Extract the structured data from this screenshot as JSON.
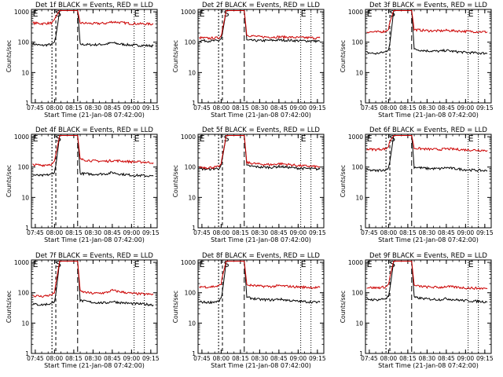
{
  "chart_data": [
    {
      "type": "line",
      "title": "Det 1f BLACK = Events, RED = LLD",
      "xlabel": "Start Time (21-Jan-08 07:42:00)",
      "ylabel": "Counts/sec",
      "xticks": [
        "07:45",
        "08:00",
        "08:15",
        "08:30",
        "08:45",
        "09:00",
        "09:15"
      ],
      "yticks": [
        "1",
        "10",
        "100",
        "1000"
      ],
      "ylim": [
        1,
        1200
      ],
      "scale": "log",
      "markers": [
        {
          "text": "E",
          "time": "07:43"
        },
        {
          "text": "S",
          "time": "08:01"
        },
        {
          "text": "E",
          "time": "09:02"
        }
      ],
      "series": [
        {
          "color": "#000000",
          "x": [
            "07:43",
            "07:50",
            "07:58",
            "08:00",
            "08:01",
            "08:04",
            "08:18",
            "08:20",
            "08:30",
            "08:40",
            "08:45",
            "08:50",
            "09:00",
            "09:10",
            "09:17"
          ],
          "values": [
            88,
            78,
            85,
            100,
            150,
            1100,
            1100,
            85,
            82,
            86,
            96,
            88,
            80,
            78,
            76
          ]
        },
        {
          "color": "#cc0000",
          "x": [
            "07:43",
            "07:50",
            "07:58",
            "08:00",
            "08:01",
            "08:04",
            "08:18",
            "08:20",
            "08:30",
            "08:40",
            "08:45",
            "08:50",
            "09:00",
            "09:10",
            "09:17"
          ],
          "values": [
            430,
            410,
            430,
            520,
            700,
            1100,
            1100,
            430,
            410,
            420,
            470,
            450,
            410,
            400,
            395
          ]
        }
      ]
    },
    {
      "type": "line",
      "title": "Det 2f BLACK = Events, RED = LLD",
      "xlabel": "Start Time (21-Jan-08 07:42:00)",
      "ylabel": "Counts/sec",
      "xticks": [
        "07:45",
        "08:00",
        "08:15",
        "08:30",
        "08:45",
        "09:00",
        "09:15"
      ],
      "yticks": [
        "1",
        "10",
        "100",
        "1000"
      ],
      "ylim": [
        1,
        1200
      ],
      "scale": "log",
      "markers": [
        {
          "text": "E",
          "time": "07:43"
        },
        {
          "text": "S",
          "time": "08:02"
        },
        {
          "text": "E",
          "time": "09:02"
        }
      ],
      "series": [
        {
          "color": "#000000",
          "x": [
            "07:43",
            "07:50",
            "07:58",
            "08:00",
            "08:01",
            "08:04",
            "08:18",
            "08:20",
            "08:30",
            "08:40",
            "08:45",
            "08:50",
            "09:00",
            "09:10",
            "09:17"
          ],
          "values": [
            115,
            110,
            112,
            130,
            200,
            1100,
            1100,
            115,
            112,
            115,
            118,
            116,
            112,
            110,
            108
          ]
        },
        {
          "color": "#cc0000",
          "x": [
            "07:43",
            "07:50",
            "07:58",
            "08:00",
            "08:01",
            "08:04",
            "08:18",
            "08:20",
            "08:30",
            "08:40",
            "08:45",
            "08:50",
            "09:00",
            "09:10",
            "09:17"
          ],
          "values": [
            140,
            135,
            140,
            160,
            260,
            1100,
            1100,
            170,
            150,
            148,
            150,
            148,
            142,
            140,
            138
          ]
        }
      ]
    },
    {
      "type": "line",
      "title": "Det 3f BLACK = Events, RED = LLD",
      "xlabel": "Start Time (21-Jan-08 07:42:00)",
      "ylabel": "Counts/sec",
      "xticks": [
        "07:45",
        "08:00",
        "08:15",
        "08:30",
        "08:45",
        "09:00",
        "09:15"
      ],
      "yticks": [
        "1",
        "10",
        "100",
        "1000"
      ],
      "ylim": [
        1,
        1200
      ],
      "scale": "log",
      "markers": [
        {
          "text": "E",
          "time": "07:43"
        },
        {
          "text": "S",
          "time": "08:01"
        },
        {
          "text": "E",
          "time": "09:02"
        }
      ],
      "series": [
        {
          "color": "#000000",
          "x": [
            "07:43",
            "07:50",
            "07:58",
            "08:00",
            "08:01",
            "08:04",
            "08:18",
            "08:20",
            "08:30",
            "08:40",
            "08:45",
            "08:50",
            "09:00",
            "09:10",
            "09:17"
          ],
          "values": [
            45,
            42,
            48,
            60,
            90,
            1100,
            1100,
            58,
            52,
            50,
            54,
            50,
            46,
            44,
            43
          ]
        },
        {
          "color": "#cc0000",
          "x": [
            "07:43",
            "07:50",
            "07:58",
            "08:00",
            "08:01",
            "08:04",
            "08:18",
            "08:20",
            "08:30",
            "08:40",
            "08:45",
            "08:50",
            "09:00",
            "09:10",
            "09:17"
          ],
          "values": [
            220,
            215,
            230,
            280,
            450,
            1100,
            1100,
            260,
            240,
            235,
            245,
            238,
            228,
            222,
            218
          ]
        }
      ]
    },
    {
      "type": "line",
      "title": "Det 4f BLACK = Events, RED = LLD",
      "xlabel": "Start Time (21-Jan-08 07:42:00)",
      "ylabel": "Counts/sec",
      "xticks": [
        "07:45",
        "08:00",
        "08:15",
        "08:30",
        "08:45",
        "09:00",
        "09:15"
      ],
      "yticks": [
        "1",
        "10",
        "100",
        "1000"
      ],
      "ylim": [
        1,
        1200
      ],
      "scale": "log",
      "markers": [
        {
          "text": "E",
          "time": "07:43"
        },
        {
          "text": "S",
          "time": "08:01"
        },
        {
          "text": "E",
          "time": "09:02"
        }
      ],
      "series": [
        {
          "color": "#000000",
          "x": [
            "07:43",
            "07:50",
            "07:58",
            "08:00",
            "08:01",
            "08:04",
            "08:18",
            "08:20",
            "08:30",
            "08:40",
            "08:45",
            "08:50",
            "09:00",
            "09:10",
            "09:17"
          ],
          "values": [
            55,
            52,
            58,
            70,
            110,
            1100,
            1100,
            62,
            58,
            60,
            66,
            60,
            54,
            52,
            50
          ]
        },
        {
          "color": "#cc0000",
          "x": [
            "07:43",
            "07:50",
            "07:58",
            "08:00",
            "08:01",
            "08:04",
            "08:18",
            "08:20",
            "08:30",
            "08:40",
            "08:45",
            "08:50",
            "09:00",
            "09:10",
            "09:17"
          ],
          "values": [
            120,
            115,
            125,
            150,
            260,
            1100,
            1100,
            180,
            160,
            155,
            165,
            160,
            150,
            145,
            140
          ]
        }
      ]
    },
    {
      "type": "line",
      "title": "Det 5f BLACK = Events, RED = LLD",
      "xlabel": "Start Time (21-Jan-08 07:42:00)",
      "ylabel": "Counts/sec",
      "xticks": [
        "07:45",
        "08:00",
        "08:15",
        "08:30",
        "08:45",
        "09:00",
        "09:15"
      ],
      "yticks": [
        "1",
        "10",
        "100",
        "1000"
      ],
      "ylim": [
        1,
        1200
      ],
      "scale": "log",
      "markers": [
        {
          "text": "E",
          "time": "07:43"
        },
        {
          "text": "S",
          "time": "08:02"
        },
        {
          "text": "E",
          "time": "09:02"
        }
      ],
      "series": [
        {
          "color": "#000000",
          "x": [
            "07:43",
            "07:50",
            "07:58",
            "08:00",
            "08:01",
            "08:04",
            "08:18",
            "08:20",
            "08:30",
            "08:40",
            "08:45",
            "08:50",
            "09:00",
            "09:10",
            "09:17"
          ],
          "values": [
            88,
            85,
            90,
            110,
            200,
            1100,
            1100,
            110,
            100,
            98,
            105,
            100,
            92,
            88,
            85
          ]
        },
        {
          "color": "#cc0000",
          "x": [
            "07:43",
            "07:50",
            "07:58",
            "08:00",
            "08:01",
            "08:04",
            "08:18",
            "08:20",
            "08:30",
            "08:40",
            "08:45",
            "08:50",
            "09:00",
            "09:10",
            "09:17"
          ],
          "values": [
            100,
            96,
            102,
            125,
            230,
            1100,
            1100,
            140,
            125,
            120,
            130,
            125,
            112,
            106,
            102
          ]
        }
      ]
    },
    {
      "type": "line",
      "title": "Det 6f BLACK = Events, RED = LLD",
      "xlabel": "Start Time (21-Jan-08 07:42:00)",
      "ylabel": "Counts/sec",
      "xticks": [
        "07:45",
        "08:00",
        "08:15",
        "08:30",
        "08:45",
        "09:00",
        "09:15"
      ],
      "yticks": [
        "1",
        "10",
        "100",
        "1000"
      ],
      "ylim": [
        1,
        1200
      ],
      "scale": "log",
      "markers": [
        {
          "text": "E",
          "time": "07:43"
        },
        {
          "text": "S",
          "time": "08:01"
        },
        {
          "text": "E",
          "time": "09:02"
        }
      ],
      "series": [
        {
          "color": "#000000",
          "x": [
            "07:43",
            "07:50",
            "07:58",
            "08:00",
            "08:01",
            "08:04",
            "08:18",
            "08:20",
            "08:30",
            "08:40",
            "08:45",
            "08:50",
            "09:00",
            "09:10",
            "09:17"
          ],
          "values": [
            80,
            76,
            82,
            95,
            150,
            1100,
            1100,
            100,
            90,
            88,
            96,
            90,
            82,
            78,
            75
          ]
        },
        {
          "color": "#cc0000",
          "x": [
            "07:43",
            "07:50",
            "07:58",
            "08:00",
            "08:01",
            "08:04",
            "08:18",
            "08:20",
            "08:30",
            "08:40",
            "08:45",
            "08:50",
            "09:00",
            "09:10",
            "09:17"
          ],
          "values": [
            390,
            380,
            400,
            480,
            700,
            1100,
            1100,
            420,
            390,
            380,
            400,
            390,
            370,
            360,
            355
          ]
        }
      ]
    },
    {
      "type": "line",
      "title": "Det 7f BLACK = Events, RED = LLD",
      "xlabel": "Start Time (21-Jan-08 07:42:00)",
      "ylabel": "Counts/sec",
      "xticks": [
        "07:45",
        "08:00",
        "08:15",
        "08:30",
        "08:45",
        "09:00",
        "09:15"
      ],
      "yticks": [
        "1",
        "10",
        "100",
        "1000"
      ],
      "ylim": [
        1,
        1200
      ],
      "scale": "log",
      "markers": [
        {
          "text": "E",
          "time": "07:43"
        },
        {
          "text": "S",
          "time": "08:01"
        },
        {
          "text": "E",
          "time": "09:02"
        }
      ],
      "series": [
        {
          "color": "#000000",
          "x": [
            "07:43",
            "07:50",
            "07:58",
            "08:00",
            "08:01",
            "08:04",
            "08:18",
            "08:20",
            "08:30",
            "08:40",
            "08:45",
            "08:50",
            "09:00",
            "09:10",
            "09:17"
          ],
          "values": [
            42,
            40,
            44,
            55,
            90,
            1100,
            1100,
            55,
            48,
            46,
            52,
            48,
            44,
            42,
            40
          ]
        },
        {
          "color": "#cc0000",
          "x": [
            "07:43",
            "07:50",
            "07:58",
            "08:00",
            "08:01",
            "08:04",
            "08:18",
            "08:20",
            "08:30",
            "08:40",
            "08:45",
            "08:50",
            "09:00",
            "09:10",
            "09:17"
          ],
          "values": [
            80,
            76,
            85,
            105,
            200,
            1100,
            1100,
            110,
            95,
            100,
            120,
            110,
            95,
            90,
            88
          ]
        }
      ]
    },
    {
      "type": "line",
      "title": "Det 8f BLACK = Events, RED = LLD",
      "xlabel": "Start Time (21-Jan-08 07:42:00)",
      "ylabel": "Counts/sec",
      "xticks": [
        "07:45",
        "08:00",
        "08:15",
        "08:30",
        "08:45",
        "09:00",
        "09:15"
      ],
      "yticks": [
        "1",
        "10",
        "100",
        "1000"
      ],
      "ylim": [
        1,
        1200
      ],
      "scale": "log",
      "markers": [
        {
          "text": "E",
          "time": "07:43"
        },
        {
          "text": "S",
          "time": "08:02"
        },
        {
          "text": "E",
          "time": "09:02"
        }
      ],
      "series": [
        {
          "color": "#000000",
          "x": [
            "07:43",
            "07:50",
            "07:58",
            "08:00",
            "08:01",
            "08:04",
            "08:18",
            "08:20",
            "08:30",
            "08:40",
            "08:45",
            "08:50",
            "09:00",
            "09:10",
            "09:17"
          ],
          "values": [
            50,
            48,
            52,
            65,
            110,
            1100,
            1100,
            70,
            60,
            58,
            62,
            58,
            52,
            50,
            48
          ]
        },
        {
          "color": "#cc0000",
          "x": [
            "07:43",
            "07:50",
            "07:58",
            "08:00",
            "08:01",
            "08:04",
            "08:18",
            "08:20",
            "08:30",
            "08:40",
            "08:45",
            "08:50",
            "09:00",
            "09:10",
            "09:17"
          ],
          "values": [
            160,
            155,
            165,
            200,
            350,
            1100,
            1100,
            180,
            165,
            160,
            170,
            165,
            155,
            150,
            148
          ]
        }
      ]
    },
    {
      "type": "line",
      "title": "Det 9f BLACK = Events, RED = LLD",
      "xlabel": "Start Time (21-Jan-08 07:42:00)",
      "ylabel": "Counts/sec",
      "xticks": [
        "07:45",
        "08:00",
        "08:15",
        "08:30",
        "08:45",
        "09:00",
        "09:15"
      ],
      "yticks": [
        "1",
        "10",
        "100",
        "1000"
      ],
      "ylim": [
        1,
        1200
      ],
      "scale": "log",
      "markers": [
        {
          "text": "E",
          "time": "07:43"
        },
        {
          "text": "S",
          "time": "08:01"
        },
        {
          "text": "E",
          "time": "09:02"
        }
      ],
      "series": [
        {
          "color": "#000000",
          "x": [
            "07:43",
            "07:50",
            "07:58",
            "08:00",
            "08:01",
            "08:04",
            "08:18",
            "08:20",
            "08:30",
            "08:40",
            "08:45",
            "08:50",
            "09:00",
            "09:10",
            "09:17"
          ],
          "values": [
            62,
            58,
            64,
            78,
            130,
            1100,
            1100,
            70,
            62,
            60,
            64,
            60,
            55,
            52,
            50
          ]
        },
        {
          "color": "#cc0000",
          "x": [
            "07:43",
            "07:50",
            "07:58",
            "08:00",
            "08:01",
            "08:04",
            "08:18",
            "08:20",
            "08:30",
            "08:40",
            "08:45",
            "08:50",
            "09:00",
            "09:10",
            "09:17"
          ],
          "values": [
            150,
            145,
            155,
            190,
            330,
            1100,
            1100,
            170,
            155,
            150,
            160,
            155,
            145,
            140,
            138
          ]
        }
      ]
    }
  ]
}
